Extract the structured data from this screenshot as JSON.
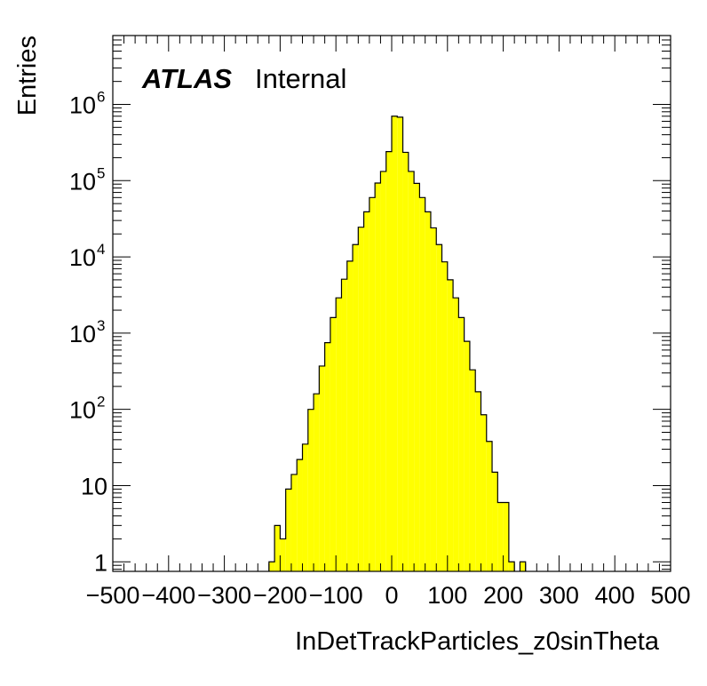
{
  "chart_data": {
    "type": "histogram",
    "xlabel": "InDetTrackParticles_z0sinTheta",
    "ylabel": "Entries",
    "label_bold": "ATLAS",
    "label_status": "Internal",
    "xlim": [
      -500,
      500
    ],
    "ylim": [
      0.75,
      8000000
    ],
    "log_y": true,
    "grid": false,
    "fill_color": "#ffff00",
    "line_color": "#000000",
    "x_tick_labels": [
      "−500",
      "−400",
      "−300",
      "−200",
      "−100",
      "0",
      "100",
      "200",
      "300",
      "400",
      "500"
    ],
    "x_tick_values": [
      -500,
      -400,
      -300,
      -200,
      -100,
      0,
      100,
      200,
      300,
      400,
      500
    ],
    "y_ticks": [
      {
        "value": 1,
        "base": "1",
        "exp": ""
      },
      {
        "value": 10,
        "base": "10",
        "exp": ""
      },
      {
        "value": 100,
        "base": "10",
        "exp": "2"
      },
      {
        "value": 1000,
        "base": "10",
        "exp": "3"
      },
      {
        "value": 10000,
        "base": "10",
        "exp": "4"
      },
      {
        "value": 100000,
        "base": "10",
        "exp": "5"
      },
      {
        "value": 1000000,
        "base": "10",
        "exp": "6"
      }
    ],
    "bin_width": 10,
    "bins": [
      {
        "x": -220,
        "y": 1
      },
      {
        "x": -210,
        "y": 3
      },
      {
        "x": -200,
        "y": 2
      },
      {
        "x": -190,
        "y": 9
      },
      {
        "x": -180,
        "y": 14
      },
      {
        "x": -170,
        "y": 22
      },
      {
        "x": -160,
        "y": 35
      },
      {
        "x": -150,
        "y": 100
      },
      {
        "x": -140,
        "y": 160
      },
      {
        "x": -130,
        "y": 370
      },
      {
        "x": -120,
        "y": 750
      },
      {
        "x": -110,
        "y": 1600
      },
      {
        "x": -100,
        "y": 2900
      },
      {
        "x": -90,
        "y": 5100
      },
      {
        "x": -80,
        "y": 8800
      },
      {
        "x": -70,
        "y": 14500
      },
      {
        "x": -60,
        "y": 24500
      },
      {
        "x": -50,
        "y": 39000
      },
      {
        "x": -40,
        "y": 60000
      },
      {
        "x": -30,
        "y": 93000
      },
      {
        "x": -20,
        "y": 132000
      },
      {
        "x": -10,
        "y": 240000
      },
      {
        "x": 0,
        "y": 700000
      },
      {
        "x": 10,
        "y": 680000
      },
      {
        "x": 20,
        "y": 235000
      },
      {
        "x": 30,
        "y": 132000
      },
      {
        "x": 40,
        "y": 92000
      },
      {
        "x": 50,
        "y": 60000
      },
      {
        "x": 60,
        "y": 39000
      },
      {
        "x": 70,
        "y": 24000
      },
      {
        "x": 80,
        "y": 14500
      },
      {
        "x": 90,
        "y": 8600
      },
      {
        "x": 100,
        "y": 5000
      },
      {
        "x": 110,
        "y": 2900
      },
      {
        "x": 120,
        "y": 1600
      },
      {
        "x": 130,
        "y": 780
      },
      {
        "x": 140,
        "y": 330
      },
      {
        "x": 150,
        "y": 170
      },
      {
        "x": 160,
        "y": 85
      },
      {
        "x": 170,
        "y": 38
      },
      {
        "x": 180,
        "y": 15
      },
      {
        "x": 190,
        "y": 6
      },
      {
        "x": 200,
        "y": 6
      },
      {
        "x": 210,
        "y": 1
      },
      {
        "x": 230,
        "y": 1
      }
    ]
  }
}
